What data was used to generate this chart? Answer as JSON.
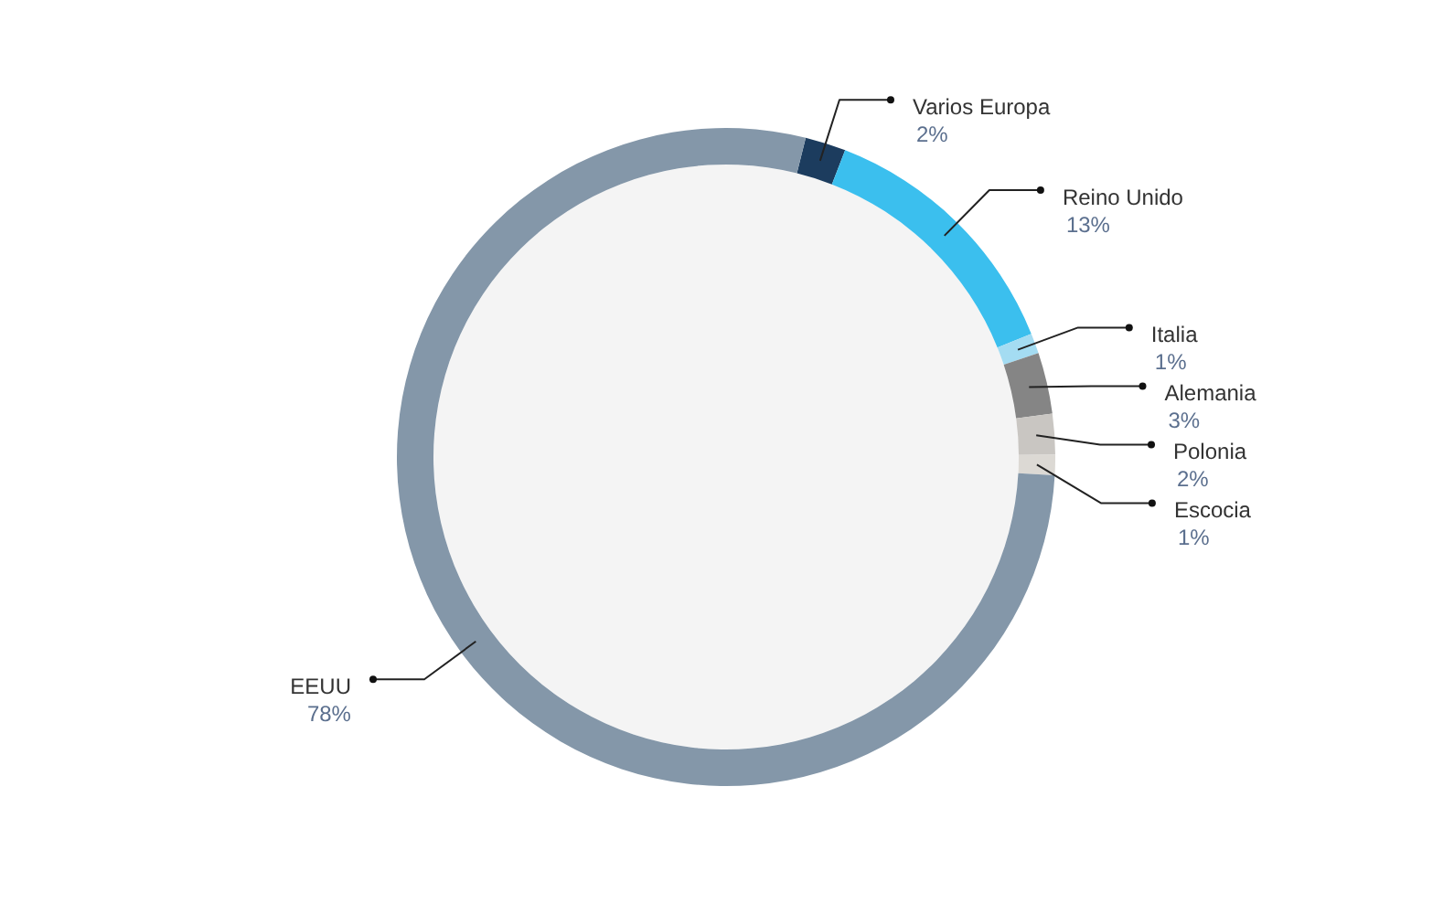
{
  "chart_data": {
    "type": "donut",
    "categories": [
      "Varios Europa",
      "Reino Unido",
      "Italia",
      "Alemania",
      "Polonia",
      "Escocia",
      "EEUU"
    ],
    "values": [
      2,
      13,
      1,
      3,
      2,
      1,
      78
    ],
    "value_labels": [
      "2%",
      "13%",
      "1%",
      "3%",
      "2%",
      "1%",
      "78%"
    ],
    "colors": [
      "#1c3c5e",
      "#3bbfee",
      "#a4dcf2",
      "#858585",
      "#c9c6c2",
      "#dcd9d4",
      "#8497a9"
    ]
  }
}
